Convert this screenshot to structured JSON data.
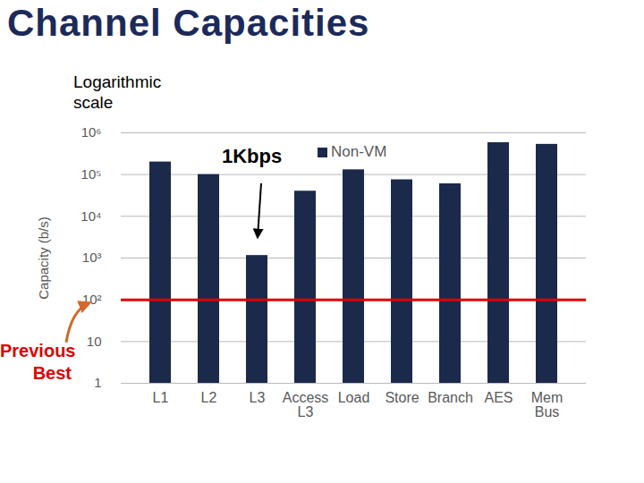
{
  "chart_data": {
    "type": "bar",
    "title": "Channel Capacities",
    "y_label": "Capacity (b/s)",
    "categories": [
      "L1",
      "L2",
      "L3",
      "Access L3",
      "Load",
      "Store",
      "Branch",
      "AES",
      "Mem Bus"
    ],
    "series": [
      {
        "name": "Non-VM",
        "color": "#1b2a4a",
        "values": [
          200000,
          100000,
          1150,
          40000,
          130000,
          75000,
          60000,
          580000,
          530000
        ]
      }
    ],
    "ylim": [
      1,
      1000000
    ],
    "yticks": [
      1,
      10,
      {
        "value": 100,
        "label": "10²"
      },
      {
        "value": 1000,
        "label": "10³"
      },
      {
        "value": 10000,
        "label": "10⁴"
      },
      {
        "value": 100000,
        "label": "10⁵"
      },
      {
        "value": 1000000,
        "label": "10⁶"
      }
    ],
    "log": "y",
    "grid": true,
    "legend": "top",
    "annotations": [
      {
        "text": "Logarithmic scale"
      },
      {
        "text": "1Kbps",
        "category": "L3"
      }
    ],
    "reference_line": {
      "value": 100,
      "label": "Previous Best",
      "color": "#e00000"
    }
  }
}
